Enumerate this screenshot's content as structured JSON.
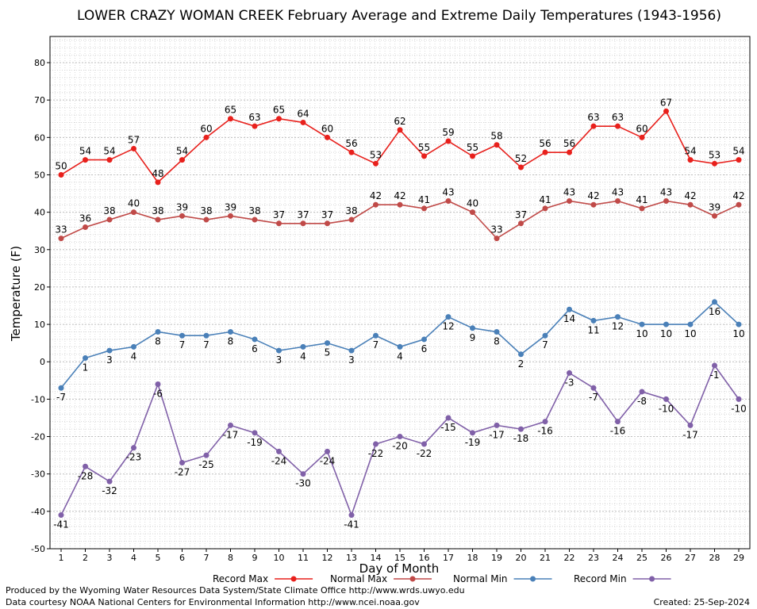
{
  "chart_data": {
    "type": "line",
    "title": "LOWER CRAZY WOMAN CREEK February Average and Extreme Daily Temperatures (1943-1956)",
    "xlabel": "Day of Month",
    "ylabel": "Temperature (F)",
    "ylim": [
      -50,
      87
    ],
    "yticks": [
      -50,
      -40,
      -30,
      -20,
      -10,
      0,
      10,
      20,
      30,
      40,
      50,
      60,
      70,
      80
    ],
    "x": [
      1,
      2,
      3,
      4,
      5,
      6,
      7,
      8,
      9,
      10,
      11,
      12,
      13,
      14,
      15,
      16,
      17,
      18,
      19,
      20,
      21,
      22,
      23,
      24,
      25,
      26,
      27,
      28,
      29
    ],
    "grid": true,
    "legend_position": "bottom",
    "series": [
      {
        "name": "Record Max",
        "color": "#e8201c",
        "values": [
          50,
          54,
          54,
          57,
          48,
          54,
          60,
          65,
          63,
          65,
          64,
          60,
          56,
          53,
          62,
          55,
          59,
          55,
          58,
          52,
          56,
          56,
          63,
          63,
          60,
          67,
          54,
          53,
          54
        ]
      },
      {
        "name": "Normal Max",
        "color": "#c04a48",
        "values": [
          33,
          36,
          38,
          40,
          38,
          39,
          38,
          39,
          38,
          37,
          37,
          37,
          38,
          42,
          42,
          41,
          43,
          40,
          33,
          37,
          41,
          43,
          42,
          43,
          41,
          43,
          42,
          39,
          42
        ]
      },
      {
        "name": "Normal Min",
        "color": "#4a80b8",
        "values": [
          -7,
          1,
          3,
          4,
          8,
          7,
          7,
          8,
          6,
          3,
          4,
          5,
          3,
          7,
          4,
          6,
          12,
          9,
          8,
          2,
          7,
          14,
          11,
          12,
          10,
          10,
          10,
          16,
          10
        ]
      },
      {
        "name": "Record Min",
        "color": "#8060a8",
        "values": [
          -41,
          -28,
          -32,
          -23,
          -6,
          -27,
          -25,
          -17,
          -19,
          -24,
          -30,
          -24,
          -41,
          -22,
          -20,
          -22,
          -15,
          -19,
          -17,
          -18,
          -16,
          -3,
          -7,
          -16,
          -8,
          -10,
          -17,
          -1,
          -10
        ]
      }
    ]
  },
  "footer": {
    "produced_by": "Produced by the Wyoming Water Resources Data System/State Climate Office http://www.wrds.uwyo.edu",
    "courtesy": "Data courtesy NOAA National Centers for Environmental Information http://www.ncei.noaa.gov",
    "created": "Created: 25-Sep-2024"
  }
}
